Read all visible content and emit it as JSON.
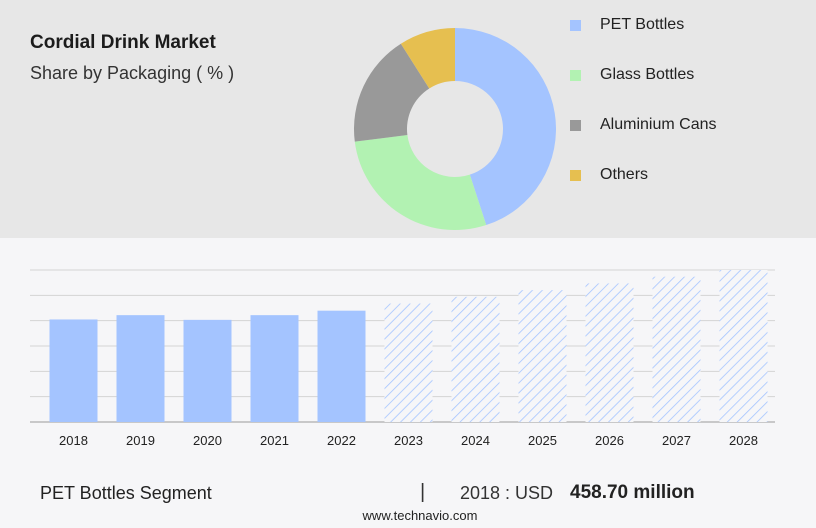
{
  "header": {
    "title": "Cordial Drink Market",
    "subtitle": "Share by Packaging ( % )"
  },
  "legend": {
    "items": [
      {
        "label": "PET Bottles",
        "color": "#a4c4ff"
      },
      {
        "label": "Glass Bottles",
        "color": "#b2f2b2"
      },
      {
        "label": "Aluminium Cans",
        "color": "#999999"
      },
      {
        "label": "Others",
        "color": "#e6bf50"
      }
    ]
  },
  "chart_data": [
    {
      "type": "pie",
      "slices": [
        {
          "label": "PET Bottles",
          "value": 45
        },
        {
          "label": "Glass Bottles",
          "value": 28
        },
        {
          "label": "Aluminium Cans",
          "value": 18
        },
        {
          "label": "Others",
          "value": 9
        }
      ]
    },
    {
      "type": "bar",
      "categories": [
        "2018",
        "2019",
        "2020",
        "2021",
        "2022",
        "2023",
        "2024",
        "2025",
        "2026",
        "2027",
        "2028"
      ],
      "values": [
        458.7,
        478,
        457,
        478,
        498,
        530,
        560,
        590,
        620,
        650,
        680
      ],
      "forecast_from": "2023",
      "ylim": [
        0,
        680
      ],
      "grid": true,
      "series_color": "#a4c4ff"
    }
  ],
  "footer": {
    "segment": "PET Bottles Segment",
    "separator": "|",
    "year_label": "2018 : USD",
    "value": "458.70 million"
  },
  "source": "www.technavio.com"
}
